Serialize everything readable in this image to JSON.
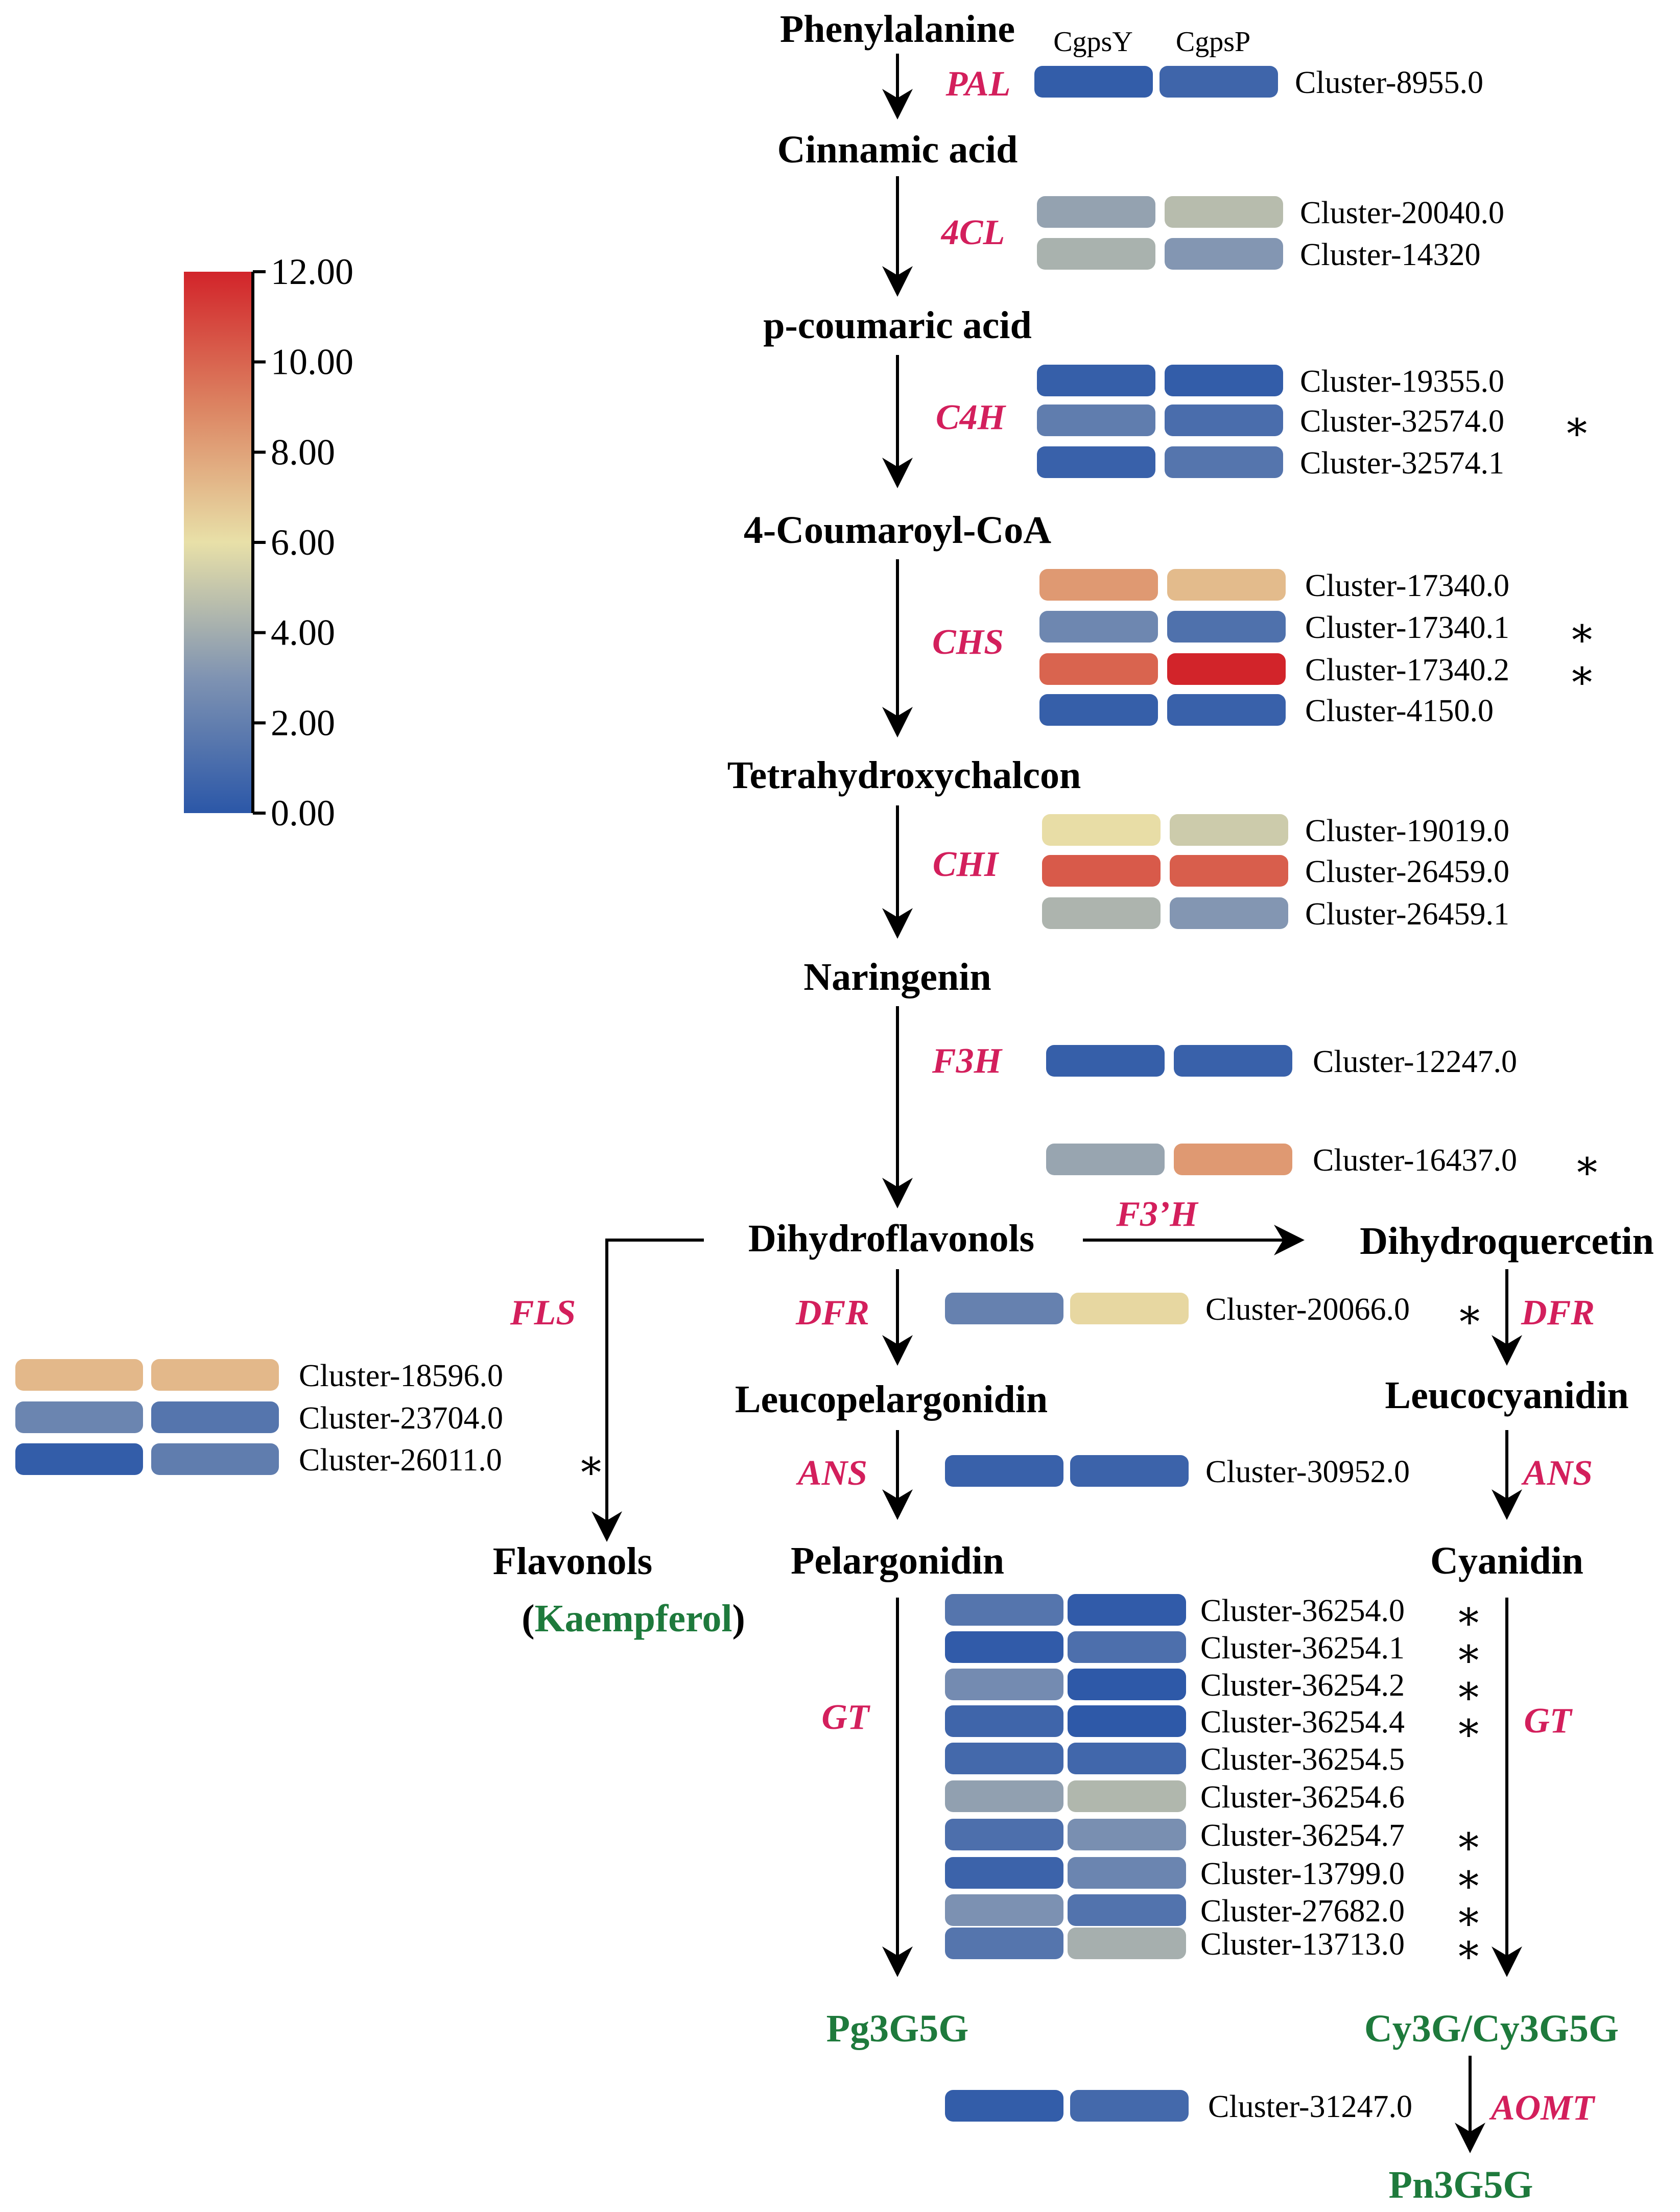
{
  "colors": {
    "enzyme": "#d31f5c",
    "product": "#1e7a3c",
    "scale_low": "#2b57a8",
    "scale_mid": "#e8e0a8",
    "scale_high": "#d2242a"
  },
  "legend": {
    "min": 0,
    "max": 12,
    "ticks": [
      "12.00",
      "10.00",
      "8.00",
      "6.00",
      "4.00",
      "2.00",
      "0.00"
    ]
  },
  "columns": [
    "CgpsY",
    "CgpsP"
  ],
  "metabolites": {
    "phenylalanine": "Phenylalanine",
    "cinnamic_acid": "Cinnamic acid",
    "p_coumaric_acid": "p-coumaric acid",
    "coumaroyl_coa": "4-Coumaroyl-CoA",
    "tetrahydroxychalcon": "Tetrahydroxychalcon",
    "naringenin": "Naringenin",
    "dihydroflavonols": "Dihydroflavonols",
    "dihydroquercetin": "Dihydroquercetin",
    "leucopelargonidin": "Leucopelargonidin",
    "leucocyanidin": "Leucocyanidin",
    "flavonols": "Flavonols",
    "kaempferol_open": "(",
    "kaempferol": "Kaempferol",
    "kaempferol_close": ")",
    "pelargonidin": "Pelargonidin",
    "cyanidin": "Cyanidin",
    "pg3g5g": "Pg3G5G",
    "cy3g": "Cy3G/Cy3G5G",
    "pn3g5g": "Pn3G5G"
  },
  "enzymes": {
    "pal": "PAL",
    "c4l": "4CL",
    "c4h": "C4H",
    "chs": "CHS",
    "chi": "CHI",
    "f3h": "F3H",
    "f3ph": "F3’H",
    "fls": "FLS",
    "dfr_left": "DFR",
    "dfr_right": "DFR",
    "ans_left": "ANS",
    "ans_right": "ANS",
    "gt_left": "GT",
    "gt_right": "GT",
    "aomt": "AOMT"
  },
  "genes": [
    {
      "group": "PAL",
      "label": "Cluster-8955.0",
      "y": 0.3,
      "p": 0.7,
      "sig": false
    },
    {
      "group": "4CL",
      "label": "Cluster-20040.0",
      "y": 3.6,
      "p": 4.6,
      "sig": false
    },
    {
      "group": "4CL",
      "label": "Cluster-14320",
      "y": 4.2,
      "p": 3.1,
      "sig": false
    },
    {
      "group": "C4H",
      "label": "Cluster-19355.0",
      "y": 0.4,
      "p": 0.3,
      "sig": false
    },
    {
      "group": "C4H",
      "label": "Cluster-32574.0",
      "y": 1.9,
      "p": 1.1,
      "sig": true
    },
    {
      "group": "C4H",
      "label": "Cluster-32574.1",
      "y": 0.5,
      "p": 1.5,
      "sig": false
    },
    {
      "group": "CHS",
      "label": "Cluster-17340.0",
      "y": 8.3,
      "p": 7.2,
      "sig": false
    },
    {
      "group": "CHS",
      "label": "Cluster-17340.1",
      "y": 2.4,
      "p": 1.3,
      "sig": true
    },
    {
      "group": "CHS",
      "label": "Cluster-17340.2",
      "y": 10.0,
      "p": 12.0,
      "sig": true
    },
    {
      "group": "CHS",
      "label": "Cluster-4150.0",
      "y": 0.4,
      "p": 0.5,
      "sig": false
    },
    {
      "group": "CHI",
      "label": "Cluster-19019.0",
      "y": 6.1,
      "p": 5.2,
      "sig": false
    },
    {
      "group": "CHI",
      "label": "Cluster-26459.0",
      "y": 10.3,
      "p": 10.2,
      "sig": false
    },
    {
      "group": "CHI",
      "label": "Cluster-26459.1",
      "y": 4.3,
      "p": 3.1,
      "sig": false
    },
    {
      "group": "F3H",
      "label": "Cluster-12247.0",
      "y": 0.4,
      "p": 0.5,
      "sig": false
    },
    {
      "group": "F3'H",
      "label": "Cluster-16437.0",
      "y": 3.7,
      "p": 8.3,
      "sig": true
    },
    {
      "group": "DFR",
      "label": "Cluster-20066.0",
      "y": 2.1,
      "p": 6.3,
      "sig": true
    },
    {
      "group": "FLS",
      "label": "Cluster-18596.0",
      "y": 7.3,
      "p": 7.3,
      "sig": false
    },
    {
      "group": "FLS",
      "label": "Cluster-23704.0",
      "y": 2.3,
      "p": 1.5,
      "sig": false
    },
    {
      "group": "FLS",
      "label": "Cluster-26011.0",
      "y": 0.3,
      "p": 1.9,
      "sig": true
    },
    {
      "group": "ANS",
      "label": "Cluster-30952.0",
      "y": 0.5,
      "p": 0.6,
      "sig": false
    },
    {
      "group": "GT",
      "label": "Cluster-36254.0",
      "y": 1.5,
      "p": 0.2,
      "sig": true
    },
    {
      "group": "GT",
      "label": "Cluster-36254.1",
      "y": 0.2,
      "p": 1.2,
      "sig": true
    },
    {
      "group": "GT",
      "label": "Cluster-36254.2",
      "y": 2.6,
      "p": 0.1,
      "sig": true
    },
    {
      "group": "GT",
      "label": "Cluster-36254.4",
      "y": 0.7,
      "p": 0.1,
      "sig": true
    },
    {
      "group": "GT",
      "label": "Cluster-36254.5",
      "y": 0.9,
      "p": 0.8,
      "sig": false
    },
    {
      "group": "GT",
      "label": "Cluster-36254.6",
      "y": 3.5,
      "p": 4.4,
      "sig": false
    },
    {
      "group": "GT",
      "label": "Cluster-36254.7",
      "y": 1.2,
      "p": 2.8,
      "sig": true
    },
    {
      "group": "GT",
      "label": "Cluster-13799.0",
      "y": 0.6,
      "p": 2.3,
      "sig": true
    },
    {
      "group": "GT",
      "label": "Cluster-27682.0",
      "y": 2.9,
      "p": 1.4,
      "sig": true
    },
    {
      "group": "GT",
      "label": "Cluster-13713.0",
      "y": 1.5,
      "p": 4.1,
      "sig": true
    },
    {
      "group": "AOMT",
      "label": "Cluster-31247.0",
      "y": 0.3,
      "p": 0.9,
      "sig": false
    }
  ],
  "sig_mark": "∗"
}
